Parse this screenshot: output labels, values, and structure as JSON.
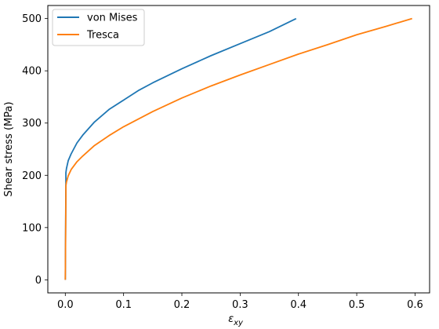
{
  "chart_data": {
    "type": "line",
    "title": "",
    "xlabel": "ε_xy",
    "ylabel": "Shear stress (MPa)",
    "xlim": [
      -0.03,
      0.625
    ],
    "ylim": [
      -25,
      525
    ],
    "xticks": [
      0.0,
      0.1,
      0.2,
      0.3,
      0.4,
      0.5,
      0.6
    ],
    "xtick_labels": [
      "0.0",
      "0.1",
      "0.2",
      "0.3",
      "0.4",
      "0.5",
      "0.6"
    ],
    "yticks": [
      0,
      100,
      200,
      300,
      400,
      500
    ],
    "ytick_labels": [
      "0",
      "100",
      "200",
      "300",
      "400",
      "500"
    ],
    "grid": false,
    "legend_position": "top-left",
    "series": [
      {
        "name": "von Mises",
        "color": "#1f77b4",
        "x": [
          0.0,
          0.001,
          0.001,
          0.002,
          0.005,
          0.01,
          0.02,
          0.03,
          0.05,
          0.075,
          0.1,
          0.125,
          0.15,
          0.2,
          0.25,
          0.3,
          0.35,
          0.396
        ],
        "y": [
          0,
          180,
          205,
          213,
          228,
          241,
          262,
          277,
          302,
          326,
          344,
          362,
          377,
          404,
          429,
          452,
          475,
          500
        ]
      },
      {
        "name": "Tresca",
        "color": "#ff7f0e",
        "x": [
          0.0,
          0.001,
          0.001,
          0.002,
          0.005,
          0.01,
          0.02,
          0.03,
          0.05,
          0.075,
          0.1,
          0.15,
          0.2,
          0.25,
          0.3,
          0.35,
          0.4,
          0.45,
          0.5,
          0.55,
          0.595
        ],
        "y": [
          0,
          160,
          180,
          187,
          199,
          211,
          226,
          237,
          257,
          276,
          293,
          322,
          348,
          371,
          392,
          412,
          432,
          450,
          469,
          485,
          500
        ]
      }
    ]
  }
}
